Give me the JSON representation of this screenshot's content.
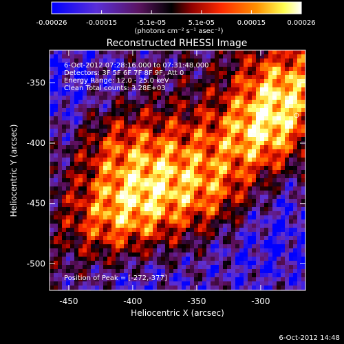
{
  "chart_data": {
    "type": "heatmap",
    "title": "Reconstructed RHESSI Image",
    "xlabel": "Heliocentric X (arcsec)",
    "ylabel": "Heliocentric Y (arcsec)",
    "xlim": [
      -465,
      -265
    ],
    "ylim": [
      -522,
      -323
    ],
    "x_ticks": [
      -450,
      -400,
      -350,
      -300
    ],
    "y_ticks": [
      -350,
      -400,
      -450,
      -500
    ],
    "colorbar": {
      "ticks": [
        "-0.00026",
        "-0.00015",
        "-5.1e-05",
        "5.1e-05",
        "0.00015",
        "0.00026"
      ],
      "range": [
        -0.00026,
        0.00026
      ],
      "label": "(photons cm⁻² s⁻¹ asec⁻²)",
      "colormap": [
        "#0000ff",
        "#6030d0",
        "#601060",
        "#000000",
        "#a00000",
        "#ff2a00",
        "#ff8c00",
        "#ffff60",
        "#ffffff"
      ]
    },
    "annotations": [
      "6-Oct-2012 07:28:16.000 to 07:31:48.000",
      "Detectors: 3F 5F 6F 7F 8F 9F, Att 0",
      "Energy Range: 12.0 - 25.0 keV",
      "Clean    Total counts: 3.28E+03"
    ],
    "peak_text": "Position of Peak = [-272,-377]",
    "peak_position": [
      -272,
      -377
    ]
  },
  "footer_date": "6-Oct-2012 14:48"
}
